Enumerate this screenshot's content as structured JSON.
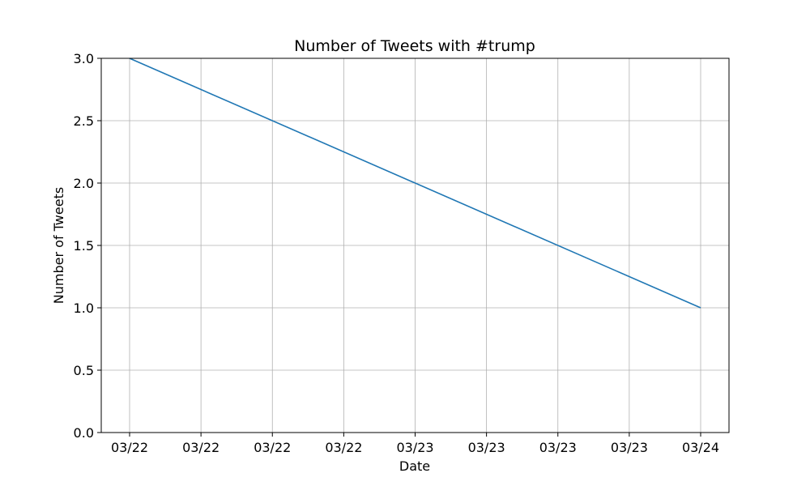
{
  "chart_data": {
    "type": "line",
    "title": "Number of Tweets with #trump",
    "xlabel": "Date",
    "ylabel": "Number of Tweets",
    "x": [
      "2020-03-22",
      "2020-03-24"
    ],
    "x_tick_labels": [
      "03/22",
      "03/22",
      "03/22",
      "03/22",
      "03/23",
      "03/23",
      "03/23",
      "03/23",
      "03/24"
    ],
    "y_tick_labels": [
      "0.0",
      "0.5",
      "1.0",
      "1.5",
      "2.0",
      "2.5",
      "3.0"
    ],
    "y_ticks": [
      0,
      0.5,
      1.0,
      1.5,
      2.0,
      2.5,
      3.0
    ],
    "ylim": [
      0,
      3.0
    ],
    "series": [
      {
        "values": [
          3,
          1
        ],
        "color": "#1f77b4"
      }
    ],
    "grid": true
  }
}
